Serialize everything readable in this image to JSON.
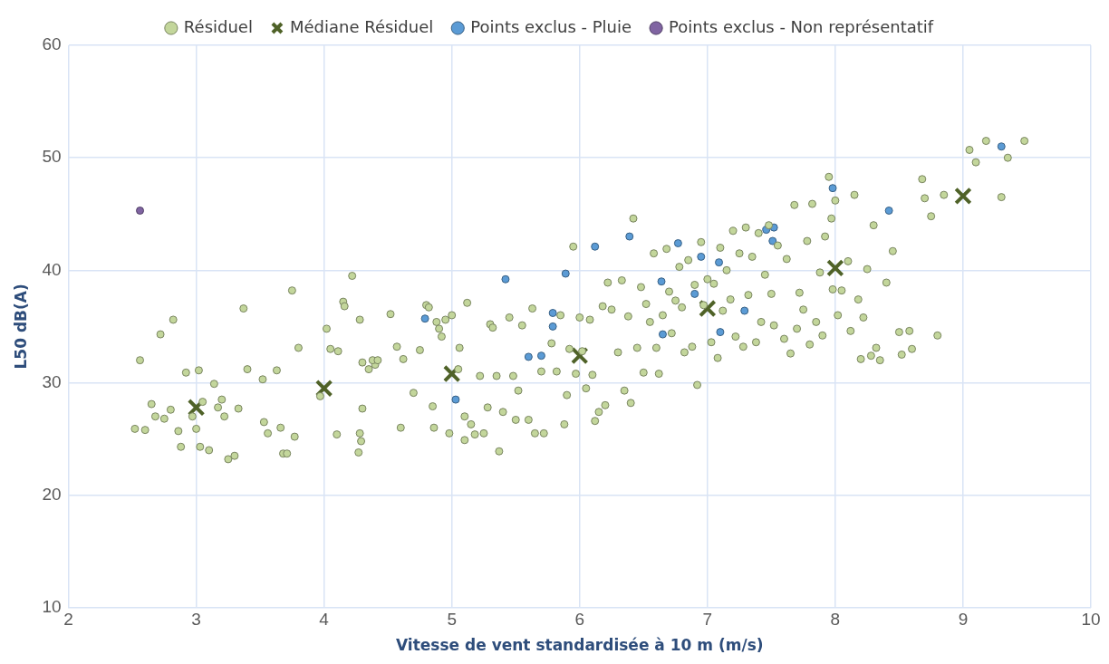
{
  "chart_data": {
    "type": "scatter",
    "xlabel": "Vitesse de vent standardisée à 10 m (m/s)",
    "ylabel": "L50 dB(A)",
    "xlim": [
      2,
      10
    ],
    "xticks": [
      2,
      3,
      4,
      5,
      6,
      7,
      8,
      9,
      10
    ],
    "ylim": [
      10,
      60
    ],
    "yticks": [
      10,
      20,
      30,
      40,
      50,
      60
    ],
    "grid": true,
    "legend": "top",
    "series": [
      {
        "name": "Résiduel",
        "color": "#c3d69b",
        "marker": "circle",
        "x": [
          2.52,
          2.56,
          2.6,
          2.65,
          2.68,
          2.72,
          2.75,
          2.8,
          2.82,
          2.86,
          2.88,
          2.92,
          2.97,
          3.0,
          3.02,
          3.03,
          3.05,
          3.1,
          3.14,
          3.17,
          3.2,
          3.22,
          3.25,
          3.3,
          3.33,
          3.37,
          3.4,
          3.52,
          3.53,
          3.56,
          3.63,
          3.66,
          3.68,
          3.71,
          3.75,
          3.77,
          3.8,
          3.97,
          4.02,
          4.05,
          4.1,
          4.11,
          4.15,
          4.16,
          4.22,
          4.27,
          4.28,
          4.29,
          4.3,
          4.28,
          4.3,
          4.35,
          4.4,
          4.38,
          4.42,
          4.52,
          4.57,
          4.6,
          4.62,
          4.7,
          4.75,
          4.8,
          4.82,
          4.85,
          4.86,
          4.88,
          4.9,
          4.92,
          4.95,
          4.98,
          5.0,
          5.05,
          5.06,
          5.1,
          5.1,
          5.12,
          5.15,
          5.18,
          5.22,
          5.25,
          5.28,
          5.3,
          5.32,
          5.35,
          5.37,
          5.4,
          5.45,
          5.48,
          5.5,
          5.52,
          5.55,
          5.6,
          5.63,
          5.65,
          5.7,
          5.72,
          5.78,
          5.82,
          5.85,
          5.88,
          5.9,
          5.92,
          5.95,
          5.97,
          6.0,
          6.02,
          6.05,
          6.08,
          6.1,
          6.12,
          6.15,
          6.18,
          6.2,
          6.22,
          6.25,
          6.3,
          6.33,
          6.35,
          6.38,
          6.4,
          6.42,
          6.45,
          6.48,
          6.5,
          6.52,
          6.55,
          6.58,
          6.6,
          6.62,
          6.65,
          6.68,
          6.7,
          6.72,
          6.75,
          6.78,
          6.8,
          6.82,
          6.85,
          6.88,
          6.9,
          6.92,
          6.95,
          6.97,
          7.0,
          7.03,
          7.05,
          7.08,
          7.1,
          7.12,
          7.15,
          7.18,
          7.2,
          7.22,
          7.25,
          7.28,
          7.3,
          7.32,
          7.35,
          7.38,
          7.4,
          7.42,
          7.45,
          7.48,
          7.5,
          7.52,
          7.55,
          7.6,
          7.62,
          7.65,
          7.68,
          7.7,
          7.72,
          7.75,
          7.78,
          7.8,
          7.82,
          7.85,
          7.88,
          7.9,
          7.92,
          7.95,
          7.97,
          7.98,
          8.0,
          8.02,
          8.05,
          8.1,
          8.12,
          8.15,
          8.18,
          8.2,
          8.22,
          8.25,
          8.28,
          8.3,
          8.32,
          8.35,
          8.4,
          8.45,
          8.5,
          8.52,
          8.58,
          8.6,
          8.68,
          8.7,
          8.75,
          8.8,
          8.85,
          9.05,
          9.1,
          9.18,
          9.3,
          9.35,
          9.48
        ],
        "values": [
          25.9,
          32.0,
          25.8,
          28.1,
          27.0,
          34.3,
          26.8,
          27.6,
          35.6,
          25.7,
          24.3,
          30.9,
          27.0,
          25.9,
          31.1,
          24.3,
          28.3,
          24.0,
          29.9,
          27.8,
          28.5,
          27.0,
          23.2,
          23.5,
          27.7,
          36.6,
          31.2,
          30.3,
          26.5,
          25.5,
          31.1,
          26.0,
          23.7,
          23.7,
          38.2,
          25.2,
          33.1,
          28.8,
          34.8,
          33.0,
          25.4,
          32.8,
          37.2,
          36.8,
          39.5,
          23.8,
          25.5,
          24.8,
          27.7,
          35.6,
          31.8,
          31.2,
          31.6,
          32.0,
          32.0,
          36.1,
          33.2,
          26.0,
          32.1,
          29.1,
          32.9,
          36.9,
          36.7,
          27.9,
          26.0,
          35.4,
          34.8,
          34.1,
          35.6,
          25.5,
          36.0,
          31.2,
          33.1,
          27.0,
          24.9,
          37.1,
          26.3,
          25.4,
          30.6,
          25.5,
          27.8,
          35.2,
          34.9,
          30.6,
          23.9,
          27.4,
          35.8,
          30.6,
          26.7,
          29.3,
          35.1,
          26.7,
          36.6,
          25.5,
          31.0,
          25.5,
          33.5,
          31.0,
          36.0,
          26.3,
          28.9,
          33.0,
          42.1,
          30.8,
          35.8,
          32.8,
          29.5,
          35.6,
          30.7,
          26.6,
          27.4,
          36.8,
          28.0,
          38.9,
          36.5,
          32.7,
          39.1,
          29.3,
          35.9,
          28.2,
          44.6,
          33.1,
          38.5,
          30.9,
          37.0,
          35.4,
          41.5,
          33.1,
          30.8,
          36.0,
          41.9,
          38.1,
          34.4,
          37.3,
          40.3,
          36.7,
          32.7,
          40.9,
          33.2,
          38.7,
          29.8,
          42.5,
          36.9,
          39.2,
          33.6,
          38.8,
          32.2,
          42.0,
          36.4,
          40.0,
          37.4,
          43.5,
          34.1,
          41.5,
          33.2,
          43.8,
          37.8,
          41.2,
          33.6,
          43.3,
          35.4,
          39.6,
          44.0,
          37.9,
          35.1,
          42.2,
          33.9,
          41.0,
          32.6,
          45.8,
          34.8,
          38.0,
          36.5,
          42.6,
          33.4,
          45.9,
          35.4,
          39.8,
          34.2,
          43.0,
          48.3,
          44.6,
          38.3,
          46.2,
          36.0,
          38.2,
          40.8,
          34.6,
          46.7,
          37.4,
          32.1,
          35.8,
          40.1,
          32.4,
          44.0,
          33.1,
          32.0,
          38.9,
          41.7,
          34.5,
          32.5,
          34.6,
          33.0,
          48.1,
          46.4,
          44.8,
          34.2,
          46.7,
          50.7,
          49.6,
          51.5,
          46.5,
          50.0,
          51.5
        ]
      },
      {
        "name": "Médiane Résiduel",
        "color": "#4f6228",
        "marker": "cross",
        "x": [
          3,
          4,
          5,
          6,
          7,
          8,
          9
        ],
        "values": [
          27.8,
          29.5,
          30.8,
          32.4,
          36.6,
          40.2,
          46.6
        ]
      },
      {
        "name": "Points exclus - Pluie",
        "color": "#5b9bd5",
        "marker": "circle",
        "x": [
          4.79,
          5.03,
          5.42,
          5.6,
          5.7,
          5.79,
          5.79,
          5.89,
          6.12,
          6.39,
          6.64,
          6.65,
          6.77,
          6.9,
          6.95,
          7.09,
          7.1,
          7.29,
          7.46,
          7.52,
          7.51,
          7.98,
          8.42,
          9.3
        ],
        "values": [
          35.7,
          28.5,
          39.2,
          32.3,
          32.4,
          35.0,
          36.2,
          39.7,
          42.1,
          43.0,
          39.0,
          34.3,
          42.4,
          37.9,
          41.2,
          40.7,
          34.5,
          36.4,
          43.6,
          43.8,
          42.6,
          47.3,
          45.3,
          51.0
        ]
      },
      {
        "name": "Points exclus - Non représentatif",
        "color": "#8064a2",
        "marker": "circle",
        "x": [
          2.56
        ],
        "values": [
          45.3
        ]
      }
    ]
  }
}
